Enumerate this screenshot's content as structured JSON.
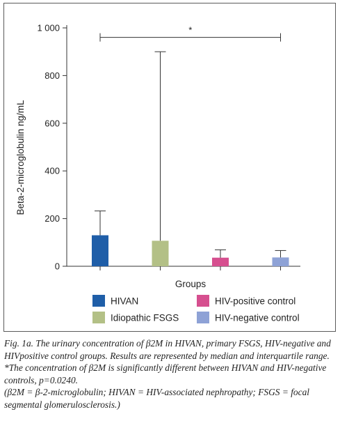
{
  "chart_data": {
    "type": "bar",
    "categories": [
      "HIVAN",
      "Idiopathic FSGS",
      "HIV-positive control",
      "HIV-negative control"
    ],
    "values": [
      130,
      107,
      36,
      37
    ],
    "error_upper": [
      232,
      900,
      69,
      66
    ],
    "colors": [
      "#1f5ea8",
      "#b3c086",
      "#d64f8f",
      "#8ea2d6"
    ],
    "xlabel": "Groups",
    "ylabel": "Beta-2-microglobulin ng/mL",
    "ylim": [
      0,
      1000
    ],
    "yticks": [
      0,
      200,
      400,
      600,
      800,
      1000
    ],
    "ytick_labels": [
      "0",
      "200",
      "400",
      "600",
      "800",
      "1 000"
    ],
    "significance": {
      "from": "HIVAN",
      "to": "HIV-negative control",
      "y": 960,
      "label": "*"
    },
    "legend": {
      "placement": "bottom",
      "items": [
        "HIVAN",
        "HIV-positive control",
        "Idiopathic FSGS",
        "HIV-negative control"
      ],
      "colors": [
        "#1f5ea8",
        "#d64f8f",
        "#b3c086",
        "#8ea2d6"
      ]
    },
    "grid": false
  },
  "caption": {
    "line1": "Fig. 1a. The urinary concentration of β2M in HIVAN, primary FSGS, HIV-negative and HIVpositive control groups. Results are represented by median and interquartile range.",
    "line2": "*The concentration of β2M is significantly different between HIVAN and HIV-negative controls, p=0.0240.",
    "line3": "(β2M = β-2-microglobulin; HIVAN = HIV-associated nephropathy; FSGS = focal segmental glomerulosclerosis.)"
  }
}
